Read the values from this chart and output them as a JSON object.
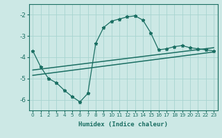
{
  "xlabel": "Humidex (Indice chaleur)",
  "background_color": "#cce8e5",
  "grid_color": "#a8d4d0",
  "line_color": "#1a6e62",
  "xlim": [
    -0.5,
    23.5
  ],
  "ylim": [
    -6.5,
    -1.5
  ],
  "yticks": [
    -6,
    -5,
    -4,
    -3,
    -2
  ],
  "xticks": [
    0,
    1,
    2,
    3,
    4,
    5,
    6,
    7,
    8,
    9,
    10,
    11,
    12,
    13,
    14,
    15,
    16,
    17,
    18,
    19,
    20,
    21,
    22,
    23
  ],
  "curve_x": [
    0,
    1,
    2,
    3,
    4,
    5,
    6,
    7,
    8,
    9,
    10,
    11,
    12,
    13,
    14,
    15,
    16,
    17,
    18,
    19,
    20,
    21,
    22,
    23
  ],
  "curve_y": [
    -3.7,
    -4.45,
    -5.0,
    -5.2,
    -5.55,
    -5.85,
    -6.1,
    -5.7,
    -3.35,
    -2.6,
    -2.3,
    -2.2,
    -2.1,
    -2.05,
    -2.25,
    -2.85,
    -3.65,
    -3.6,
    -3.5,
    -3.45,
    -3.55,
    -3.6,
    -3.65,
    -3.7
  ],
  "curve_has_markers_x": [
    0,
    1,
    2,
    3,
    4,
    5,
    6,
    7,
    8,
    9,
    10,
    11,
    12,
    13,
    14,
    15,
    16,
    17,
    18,
    19,
    20,
    21,
    22,
    23
  ],
  "line1_x": [
    0,
    23
  ],
  "line1_y": [
    -4.6,
    -3.55
  ],
  "line2_x": [
    0,
    23
  ],
  "line2_y": [
    -4.85,
    -3.75
  ]
}
